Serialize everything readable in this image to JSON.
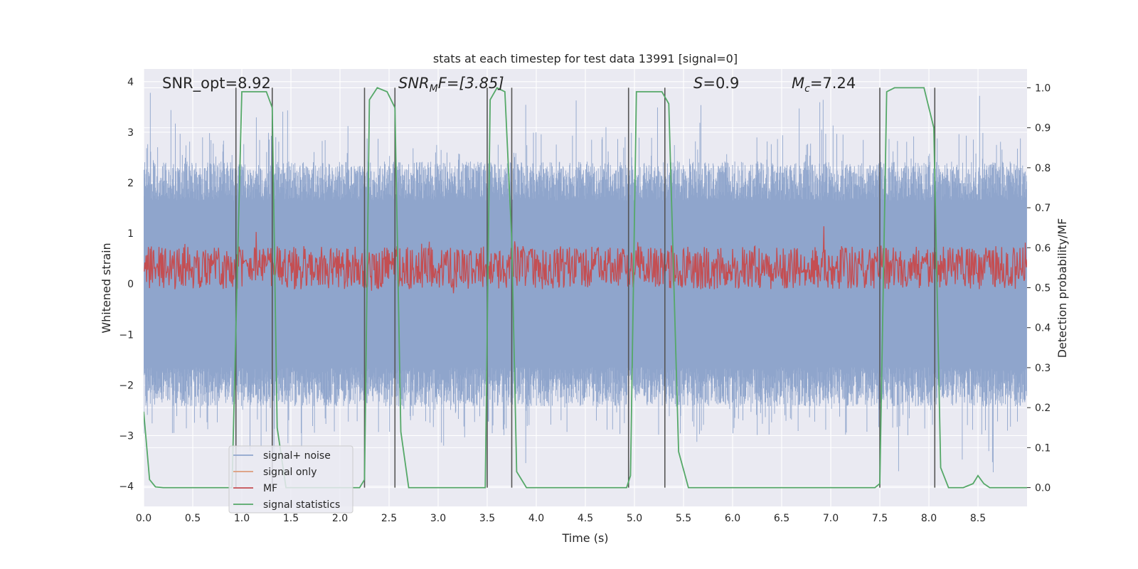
{
  "chart_data": {
    "type": "line",
    "title": "stats at each timestep for test data 13991 [signal=0]",
    "xlabel": "Time (s)",
    "ylabel": "Whitened strain",
    "y2label": "Detection probability/MF",
    "xlim": [
      0.0,
      9.0
    ],
    "ylim": [
      -4.4,
      4.25
    ],
    "y2lim": [
      -0.047,
      1.047
    ],
    "xticks": [
      "0.0",
      "0.5",
      "1.0",
      "1.5",
      "2.0",
      "2.5",
      "3.0",
      "3.5",
      "4.0",
      "4.5",
      "5.0",
      "5.5",
      "6.0",
      "6.5",
      "7.0",
      "7.5",
      "8.0",
      "8.5"
    ],
    "yticks": [
      "4",
      "3",
      "2",
      "1",
      "0",
      "−1",
      "−2",
      "−3",
      "−4"
    ],
    "y2ticks": [
      "1.0",
      "0.9",
      "0.8",
      "0.7",
      "0.6",
      "0.5",
      "0.4",
      "0.3",
      "0.2",
      "0.1",
      "0.0"
    ],
    "grid": true,
    "legend_position": "lower-left",
    "annotations": {
      "snr_opt": "SNR_opt=8.92",
      "snr_mf_base": "SNR",
      "snr_mf_sub": "M",
      "snr_mf_rest": "F=[3.85]",
      "s_sym": "S",
      "s_val": "=0.9",
      "mc_sym": "M",
      "mc_sub": "c",
      "mc_val": "=7.24"
    },
    "series": [
      {
        "name": "signal+ noise",
        "color": "#8fa5cc",
        "envelope": {
          "typical_amplitude": 2.2,
          "peak_amplitude": 3.8
        }
      },
      {
        "name": "signal only",
        "color": "#dd9b7b",
        "values": []
      },
      {
        "name": "MF",
        "color": "#c44e52",
        "axis": "right",
        "band": [
          0.52,
          0.58
        ]
      },
      {
        "name": "signal statistics",
        "color": "#55a868",
        "axis": "right",
        "x": [
          0.0,
          0.06,
          0.12,
          0.2,
          0.9,
          0.95,
          1.0,
          1.25,
          1.31,
          1.36,
          1.45,
          2.2,
          2.25,
          2.3,
          2.38,
          2.48,
          2.56,
          2.62,
          2.7,
          3.48,
          3.53,
          3.6,
          3.68,
          3.75,
          3.8,
          3.9,
          4.92,
          4.96,
          5.02,
          5.28,
          5.35,
          5.45,
          5.55,
          7.45,
          7.5,
          7.57,
          7.65,
          7.95,
          8.05,
          8.12,
          8.2,
          8.35,
          8.45,
          8.5,
          8.56,
          8.62,
          8.75,
          9.0
        ],
        "values": [
          0.19,
          0.02,
          0.002,
          0.0,
          0.0,
          0.5,
          0.99,
          0.99,
          0.95,
          0.15,
          0.0,
          0.0,
          0.02,
          0.97,
          1.0,
          0.99,
          0.95,
          0.14,
          0.0,
          0.0,
          0.97,
          1.0,
          0.99,
          0.62,
          0.04,
          0.0,
          0.0,
          0.03,
          0.99,
          0.99,
          0.96,
          0.09,
          0.0,
          0.0,
          0.01,
          0.99,
          1.0,
          1.0,
          0.9,
          0.05,
          0.0,
          0.0,
          0.01,
          0.03,
          0.01,
          0.0,
          0.0,
          0.0
        ]
      }
    ],
    "event_markers": [
      {
        "pair": [
          0.94,
          1.31
        ]
      },
      {
        "pair": [
          2.25,
          2.56
        ]
      },
      {
        "pair": [
          3.5,
          3.75
        ]
      },
      {
        "pair": [
          4.94,
          5.31
        ]
      },
      {
        "pair": [
          7.5,
          8.06
        ]
      }
    ]
  }
}
